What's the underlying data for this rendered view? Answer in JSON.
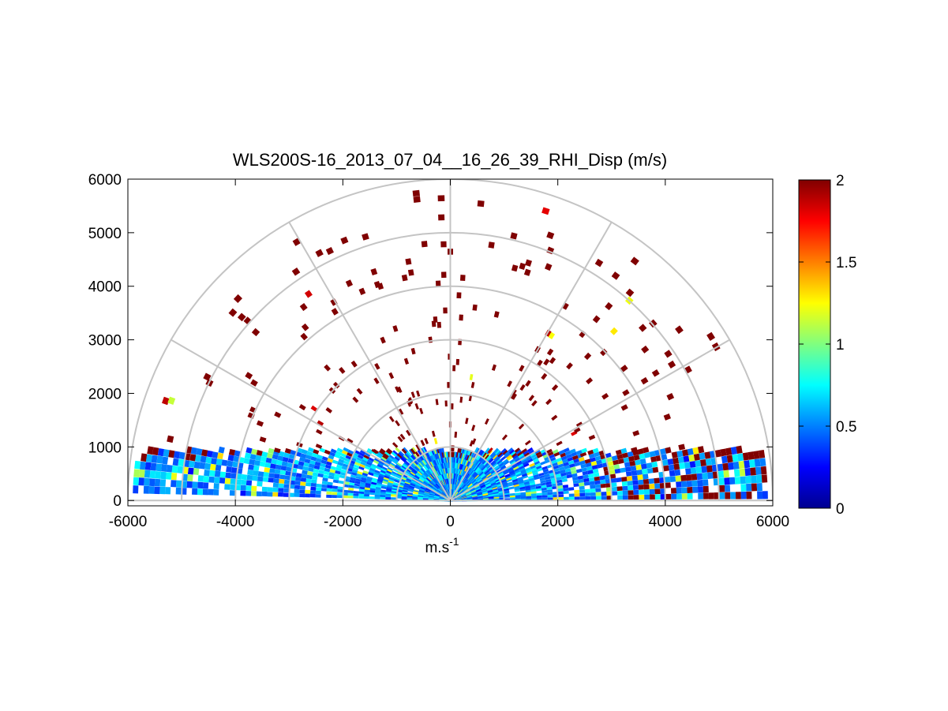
{
  "chart_data": {
    "type": "heatmap",
    "projection": "polar-rhi",
    "title": "WLS200S-16_2013_07_04__16_26_39_RHI_Disp (m/s)",
    "xlabel": "m.s",
    "xlabel_superscript": "-1",
    "ylabel": "",
    "xlim": [
      -6000,
      6000
    ],
    "ylim": [
      -100,
      6000
    ],
    "x_ticks": [
      "-6000",
      "-4000",
      "-2000",
      "0",
      "2000",
      "4000",
      "6000"
    ],
    "y_ticks": [
      "0",
      "1000",
      "2000",
      "3000",
      "4000",
      "5000",
      "6000"
    ],
    "x_tick_values": [
      -6000,
      -4000,
      -2000,
      0,
      2000,
      4000,
      6000
    ],
    "y_tick_values": [
      0,
      1000,
      2000,
      3000,
      4000,
      5000,
      6000
    ],
    "range_rings": [
      1000,
      2000,
      3000,
      4000,
      5000,
      6000
    ],
    "spokes_deg": [
      0,
      30,
      60,
      90,
      120,
      150,
      180
    ],
    "grid": true,
    "colorbar": {
      "label": "",
      "colormap": "jet",
      "clim": [
        0,
        2
      ],
      "ticks": [
        "0",
        "0.5",
        "1",
        "1.5",
        "2"
      ],
      "tick_values": [
        0,
        0.5,
        1,
        1.5,
        2
      ]
    },
    "colors": {
      "grid": "#c4c4c4",
      "axes": "#000000",
      "high": "#800000"
    },
    "observations": {
      "low_level_band": "0-1000 m height, values mostly 0.3-1.0 m/s (cyan/green)",
      "upper_scatter": "sparse pixels up to ~5500 m with values near 2 m/s (dark red)"
    }
  }
}
